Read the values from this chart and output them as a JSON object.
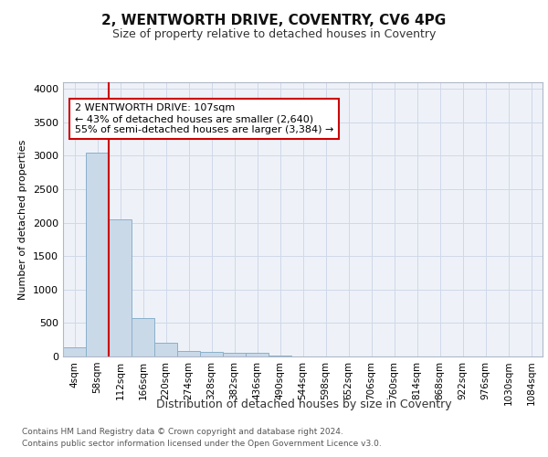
{
  "title": "2, WENTWORTH DRIVE, COVENTRY, CV6 4PG",
  "subtitle": "Size of property relative to detached houses in Coventry",
  "xlabel": "Distribution of detached houses by size in Coventry",
  "ylabel": "Number of detached properties",
  "footer_line1": "Contains HM Land Registry data © Crown copyright and database right 2024.",
  "footer_line2": "Contains public sector information licensed under the Open Government Licence v3.0.",
  "bin_labels": [
    "4sqm",
    "58sqm",
    "112sqm",
    "166sqm",
    "220sqm",
    "274sqm",
    "328sqm",
    "382sqm",
    "436sqm",
    "490sqm",
    "544sqm",
    "598sqm",
    "652sqm",
    "706sqm",
    "760sqm",
    "814sqm",
    "868sqm",
    "922sqm",
    "976sqm",
    "1030sqm",
    "1084sqm"
  ],
  "bar_heights": [
    130,
    3050,
    2050,
    570,
    200,
    80,
    65,
    55,
    55,
    10,
    0,
    0,
    0,
    0,
    0,
    0,
    0,
    0,
    0,
    0,
    0
  ],
  "bar_color": "#c9d9e8",
  "bar_edge_color": "#8ab0cc",
  "grid_color": "#d0d8e8",
  "background_color": "#eef2f8",
  "property_line_color": "#cc0000",
  "annotation_text": "2 WENTWORTH DRIVE: 107sqm\n← 43% of detached houses are smaller (2,640)\n55% of semi-detached houses are larger (3,384) →",
  "annotation_box_color": "#ffffff",
  "annotation_box_edge": "#cc0000",
  "ylim": [
    0,
    4100
  ],
  "yticks": [
    0,
    500,
    1000,
    1500,
    2000,
    2500,
    3000,
    3500,
    4000
  ]
}
